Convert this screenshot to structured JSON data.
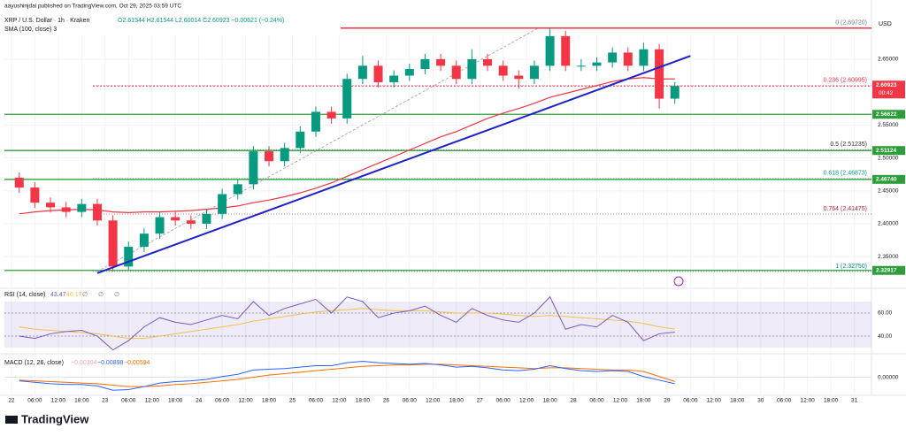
{
  "header": {
    "publisher": "aayushinjdal published on TradingView.com, Oct 29, 2025 03:59 UTC",
    "symbol": "XRP / U.S. Dollar · 1h · Kraken",
    "ohlc": "O2.61544 H2.61544 L2.60014 C2.60923 −0.00621 (−0.24%)",
    "sma_label": "SMA (100, close) 3",
    "currency": "USD",
    "brand": "TradingView"
  },
  "chart_data": {
    "type": "candlestick",
    "xlim": [
      -1.8,
      220.4
    ],
    "ylim": [
      2.31,
      2.713
    ],
    "xticks": [
      {
        "value": 0,
        "label": "22"
      },
      {
        "value": 6,
        "label": "06:00"
      },
      {
        "value": 12,
        "label": "12:00"
      },
      {
        "value": 18,
        "label": "18:00"
      },
      {
        "value": 24,
        "label": "23"
      },
      {
        "value": 30,
        "label": "06:00"
      },
      {
        "value": 36,
        "label": "12:00"
      },
      {
        "value": 42,
        "label": "18:00"
      },
      {
        "value": 48,
        "label": "24"
      },
      {
        "value": 54,
        "label": "06:00"
      },
      {
        "value": 60,
        "label": "12:00"
      },
      {
        "value": 66,
        "label": "18:00"
      },
      {
        "value": 72,
        "label": "25"
      },
      {
        "value": 78,
        "label": "06:00"
      },
      {
        "value": 84,
        "label": "12:00"
      },
      {
        "value": 90,
        "label": "18:00"
      },
      {
        "value": 96,
        "label": "26"
      },
      {
        "value": 102,
        "label": "06:00"
      },
      {
        "value": 108,
        "label": "12:00"
      },
      {
        "value": 114,
        "label": "18:00"
      },
      {
        "value": 120,
        "label": "27"
      },
      {
        "value": 126,
        "label": "06:00"
      },
      {
        "value": 132,
        "label": "12:00"
      },
      {
        "value": 138,
        "label": "18:00"
      },
      {
        "value": 144,
        "label": "28"
      },
      {
        "value": 150,
        "label": "06:00"
      },
      {
        "value": 156,
        "label": "12:00"
      },
      {
        "value": 162,
        "label": "18:00"
      },
      {
        "value": 168,
        "label": "29"
      },
      {
        "value": 174,
        "label": "06:00"
      },
      {
        "value": 180,
        "label": "12:00"
      },
      {
        "value": 186,
        "label": "18:00"
      },
      {
        "value": 192,
        "label": "30"
      },
      {
        "value": 198,
        "label": "06:00"
      },
      {
        "value": 204,
        "label": "12:00"
      },
      {
        "value": 210,
        "label": "18:00"
      },
      {
        "value": 216,
        "label": "31"
      }
    ],
    "yticks": [
      {
        "value": 2.35,
        "label": "2.35000"
      },
      {
        "value": 2.4,
        "label": "2.40000"
      },
      {
        "value": 2.45,
        "label": "2.45000"
      },
      {
        "value": 2.5,
        "label": "2.50000"
      },
      {
        "value": 2.55,
        "label": "2.55000"
      },
      {
        "value": 2.65,
        "label": "2.65000"
      }
    ],
    "candles": {
      "up_color": "#089981",
      "down_color": "#f23645",
      "x": [
        0,
        4,
        8,
        12,
        16,
        20,
        24,
        28,
        32,
        36,
        40,
        44,
        48,
        52,
        56,
        60,
        64,
        68,
        72,
        76,
        80,
        84,
        88,
        92,
        96,
        100,
        104,
        108,
        112,
        116,
        120,
        124,
        128,
        132,
        136,
        140,
        144,
        148,
        152,
        156,
        160,
        164,
        168
      ],
      "open": [
        2.47,
        2.455,
        2.432,
        2.425,
        2.418,
        2.43,
        2.405,
        2.335,
        2.365,
        2.385,
        2.41,
        2.405,
        2.4,
        2.415,
        2.445,
        2.46,
        2.51,
        2.495,
        2.515,
        2.54,
        2.57,
        2.56,
        2.62,
        2.64,
        2.615,
        2.625,
        2.635,
        2.65,
        2.64,
        2.62,
        2.65,
        2.64,
        2.625,
        2.62,
        2.64,
        2.685,
        2.64,
        2.64,
        2.645,
        2.66,
        2.64,
        2.665,
        2.59
      ],
      "high": [
        2.478,
        2.463,
        2.44,
        2.433,
        2.438,
        2.438,
        2.413,
        2.373,
        2.393,
        2.418,
        2.418,
        2.413,
        2.423,
        2.453,
        2.468,
        2.518,
        2.518,
        2.523,
        2.548,
        2.578,
        2.578,
        2.628,
        2.655,
        2.648,
        2.633,
        2.643,
        2.658,
        2.658,
        2.648,
        2.665,
        2.658,
        2.648,
        2.633,
        2.648,
        2.6972,
        2.693,
        2.65,
        2.653,
        2.668,
        2.668,
        2.675,
        2.673,
        2.61544
      ],
      "low": [
        2.447,
        2.424,
        2.417,
        2.41,
        2.41,
        2.397,
        2.3275,
        2.33,
        2.357,
        2.377,
        2.397,
        2.392,
        2.392,
        2.407,
        2.437,
        2.452,
        2.487,
        2.487,
        2.507,
        2.532,
        2.552,
        2.552,
        2.612,
        2.607,
        2.607,
        2.617,
        2.627,
        2.632,
        2.612,
        2.612,
        2.632,
        2.617,
        2.605,
        2.612,
        2.632,
        2.632,
        2.632,
        2.632,
        2.637,
        2.632,
        2.632,
        2.575,
        2.582
      ],
      "close": [
        2.455,
        2.432,
        2.425,
        2.418,
        2.43,
        2.405,
        2.335,
        2.365,
        2.385,
        2.41,
        2.405,
        2.4,
        2.415,
        2.445,
        2.46,
        2.51,
        2.495,
        2.515,
        2.54,
        2.57,
        2.56,
        2.62,
        2.64,
        2.615,
        2.625,
        2.635,
        2.65,
        2.64,
        2.62,
        2.65,
        2.64,
        2.625,
        2.62,
        2.64,
        2.685,
        2.64,
        2.64,
        2.645,
        2.66,
        2.64,
        2.665,
        2.59,
        2.60923
      ]
    },
    "sma": {
      "color": "#f23645",
      "values": [
        2.415,
        2.418,
        2.42,
        2.421,
        2.422,
        2.421,
        2.418,
        2.417,
        2.418,
        2.418,
        2.419,
        2.42,
        2.422,
        2.424,
        2.427,
        2.432,
        2.436,
        2.441,
        2.447,
        2.454,
        2.462,
        2.472,
        2.482,
        2.492,
        2.502,
        2.512,
        2.522,
        2.532,
        2.54,
        2.55,
        2.56,
        2.568,
        2.575,
        2.583,
        2.592,
        2.598,
        2.604,
        2.61,
        2.616,
        2.62,
        2.622,
        2.62,
        2.62
      ]
    },
    "trendline": {
      "color": "#1e22c8",
      "x": [
        22,
        174
      ],
      "y": [
        2.325,
        2.655
      ]
    },
    "fib_anchor": {
      "color": "#9e9e9e",
      "x": [
        22,
        135
      ],
      "y": [
        2.3275,
        2.6972
      ]
    },
    "fib": [
      {
        "value": 2.6972,
        "label": "0 (2.69720)",
        "color": "#787b86"
      },
      {
        "value": 2.60995,
        "label": "0.236 (2.60995)",
        "color": "#f23645"
      },
      {
        "value": 2.51235,
        "label": "0.5 (2.51235)",
        "color": "#333333"
      },
      {
        "value": 2.46873,
        "label": "0.618 (2.46873)",
        "color": "#089981"
      },
      {
        "value": 2.41475,
        "label": "0.764 (2.41475)",
        "color": "#b22833"
      },
      {
        "value": 2.3275,
        "label": "1 (2.32750)",
        "color": "#00897b"
      }
    ],
    "levels": {
      "color": "#2e9e3a",
      "items": [
        {
          "value": 2.56622,
          "label": "2.56622"
        },
        {
          "value": 2.51124,
          "label": "2.51124"
        },
        {
          "value": 2.4674,
          "label": "2.46740"
        },
        {
          "value": 2.32917,
          "label": "2.32917"
        }
      ]
    },
    "last": {
      "value": 2.60923,
      "label": "2.60923",
      "countdown": "00:42",
      "color": "#f23645"
    },
    "rsi": {
      "label": "RSI (14, close)",
      "readout": [
        "43.47",
        "46.17",
        "∅",
        "∅",
        "∅"
      ],
      "color": "#7e57c2",
      "ma_color": "#f5c14b",
      "ylim": [
        28.5,
        74.6
      ],
      "yticks": [
        {
          "value": 40,
          "label": "40.00"
        },
        {
          "value": 60,
          "label": "60.00"
        }
      ],
      "band": [
        30,
        70
      ],
      "values": [
        40,
        38,
        42,
        44,
        45,
        40,
        28,
        36,
        48,
        56,
        52,
        50,
        54,
        58,
        55,
        70,
        58,
        64,
        68,
        72,
        60,
        74,
        70,
        56,
        60,
        62,
        66,
        58,
        52,
        64,
        58,
        54,
        52,
        60,
        74,
        46,
        50,
        48,
        58,
        52,
        36,
        42,
        43.47
      ],
      "ma": [
        48,
        46,
        45,
        44,
        43,
        42,
        40,
        38,
        38,
        40,
        42,
        44,
        46,
        48,
        50,
        53,
        55,
        57,
        59,
        61,
        62,
        63,
        64,
        63,
        62,
        62,
        62,
        61,
        60,
        60,
        60,
        59,
        58,
        57,
        58,
        57,
        56,
        55,
        54,
        53,
        51,
        48,
        46.17
      ]
    },
    "macd": {
      "label": "MACD (12, 26, close)",
      "readout": [
        "−0.00304",
        "−0.00898",
        "−0.00594"
      ],
      "color": "#2962ff",
      "signal_color": "#ff6d00",
      "ylim": [
        -0.025,
        0.03
      ],
      "yticks": [
        {
          "value": 0,
          "label": "0.00000"
        }
      ],
      "values": [
        -0.005,
        -0.007,
        -0.009,
        -0.01,
        -0.01,
        -0.012,
        -0.018,
        -0.017,
        -0.013,
        -0.008,
        -0.006,
        -0.005,
        -0.003,
        0.001,
        0.004,
        0.01,
        0.011,
        0.012,
        0.014,
        0.016,
        0.016,
        0.02,
        0.022,
        0.02,
        0.019,
        0.018,
        0.019,
        0.017,
        0.014,
        0.015,
        0.013,
        0.01,
        0.009,
        0.011,
        0.016,
        0.012,
        0.009,
        0.008,
        0.009,
        0.008,
        0.001,
        -0.004,
        -0.00898
      ],
      "signal": [
        -0.004,
        -0.005,
        -0.006,
        -0.007,
        -0.008,
        -0.009,
        -0.011,
        -0.013,
        -0.013,
        -0.012,
        -0.01,
        -0.009,
        -0.007,
        -0.005,
        -0.003,
        0.0,
        0.003,
        0.005,
        0.007,
        0.009,
        0.011,
        0.013,
        0.015,
        0.016,
        0.017,
        0.017,
        0.018,
        0.018,
        0.017,
        0.016,
        0.015,
        0.014,
        0.013,
        0.012,
        0.013,
        0.013,
        0.012,
        0.011,
        0.01,
        0.01,
        0.008,
        0.001,
        -0.00594
      ]
    }
  }
}
